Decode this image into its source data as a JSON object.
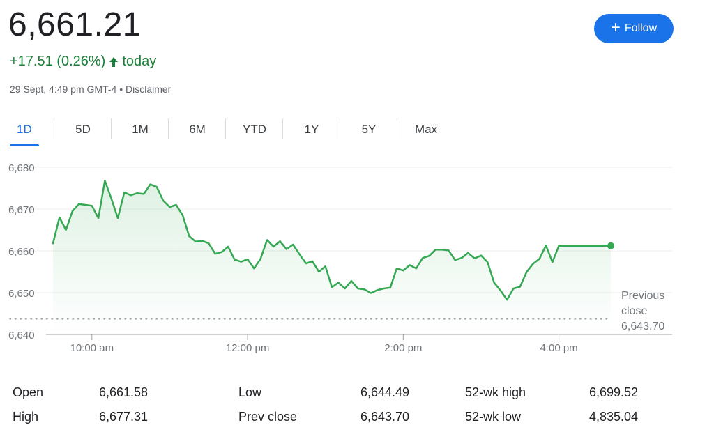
{
  "quote": {
    "price": "6,661.21",
    "change": "+17.51 (0.26%)",
    "change_arrow": "🡑",
    "period": "today",
    "timestamp": "29 Sept, 4:49 pm GMT-4",
    "separator": "•",
    "disclaimer": "Disclaimer",
    "up_color": "#188038"
  },
  "follow_button": {
    "label": "Follow",
    "icon": "plus-icon",
    "color": "#1a73e8"
  },
  "tabs": [
    {
      "label": "1D",
      "active": true
    },
    {
      "label": "5D"
    },
    {
      "label": "1M"
    },
    {
      "label": "6M"
    },
    {
      "label": "YTD"
    },
    {
      "label": "1Y"
    },
    {
      "label": "5Y"
    },
    {
      "label": "Max"
    }
  ],
  "chart_data": {
    "type": "line",
    "y_ticks": [
      "6,640",
      "6,650",
      "6,660",
      "6,670",
      "6,680"
    ],
    "y_tick_values": [
      6640,
      6650,
      6660,
      6670,
      6680
    ],
    "ylim": [
      6640,
      6680
    ],
    "x_ticks": [
      "10:00 am",
      "12:00 pm",
      "2:00 pm",
      "4:00 pm"
    ],
    "x_tick_values": [
      600,
      720,
      840,
      960
    ],
    "xlim": [
      570,
      1000
    ],
    "previous_close": {
      "value": 6643.7,
      "label_1": "Previous",
      "label_2": "close",
      "value_label": "6,643.70"
    },
    "line_color": "#34a853",
    "grid": true,
    "series": [
      {
        "x": [
          570,
          575,
          580,
          585,
          590,
          595,
          600,
          605,
          610,
          615,
          620,
          625,
          630,
          635,
          640,
          645,
          650,
          655,
          660,
          665,
          670,
          675,
          680,
          685,
          690,
          695,
          700,
          705,
          710,
          715,
          720,
          725,
          730,
          735,
          740,
          745,
          750,
          755,
          760,
          765,
          770,
          775,
          780,
          785,
          790,
          795,
          800,
          805,
          810,
          815,
          820,
          825,
          830,
          835,
          840,
          845,
          850,
          855,
          860,
          865,
          870,
          875,
          880,
          885,
          890,
          895,
          900,
          905,
          910,
          915,
          920,
          925,
          930,
          935,
          940,
          945,
          950,
          955,
          960,
          965,
          970,
          975,
          980,
          985,
          990,
          995,
          1000
        ],
        "y": [
          6661.8,
          6668.0,
          6665.0,
          6669.5,
          6671.2,
          6671.0,
          6670.8,
          6667.8,
          6676.8,
          6672.5,
          6667.8,
          6674.0,
          6673.3,
          6673.8,
          6673.6,
          6675.9,
          6675.3,
          6672.0,
          6670.5,
          6671.0,
          6668.5,
          6663.5,
          6662.2,
          6662.4,
          6661.8,
          6659.3,
          6659.7,
          6661.0,
          6657.9,
          6657.4,
          6658.0,
          6655.8,
          6658.1,
          6662.6,
          6661.0,
          6662.3,
          6660.4,
          6661.5,
          6659.2,
          6657.0,
          6657.5,
          6655.0,
          6656.3,
          6651.3,
          6652.4,
          6651.0,
          6652.8,
          6651.0,
          6650.8,
          6649.9,
          6650.6,
          6651.0,
          6651.2,
          6655.8,
          6655.3,
          6656.6,
          6655.8,
          6658.3,
          6658.8,
          6660.3,
          6660.3,
          6660.1,
          6657.8,
          6658.3,
          6659.5,
          6658.2,
          6658.9,
          6657.3,
          6652.4,
          6650.5,
          6648.3,
          6651.0,
          6651.4,
          6654.9,
          6656.9,
          6658.1,
          6661.3,
          6657.3,
          6661.21,
          6661.21,
          6661.21,
          6661.21,
          6661.21,
          6661.21,
          6661.21,
          6661.21,
          6661.21
        ]
      }
    ]
  },
  "stats": [
    {
      "l1": "Open",
      "v1": "6,661.58",
      "l2": "Low",
      "v2": "6,644.49",
      "l3": "52-wk high",
      "v3": "6,699.52"
    },
    {
      "l1": "High",
      "v1": "6,677.31",
      "l2": "Prev close",
      "v2": "6,643.70",
      "l3": "52-wk low",
      "v3": "4,835.04"
    }
  ]
}
